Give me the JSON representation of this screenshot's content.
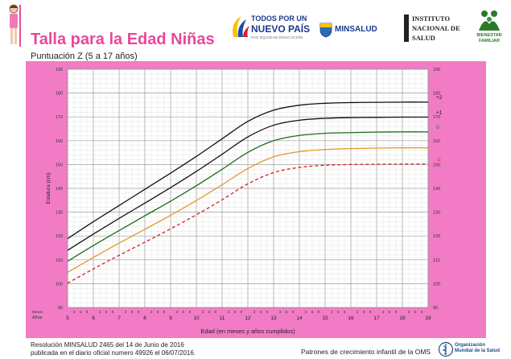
{
  "header": {
    "title": "Talla para la Edad Niñas",
    "subtitle": "Puntuación Z (5 a 17 años)"
  },
  "logos": {
    "todos_line1": "TODOS POR UN",
    "todos_line2": "NUEVO PAÍS",
    "todos_line3": "PAZ  EQUIDAD  EDUCACIÓN",
    "minsalud": "MINSALUD",
    "ins_line1": "INSTITUTO",
    "ins_line2": "NACIONAL DE",
    "ins_line3": "SALUD",
    "bienestar_line1": "BIENESTAR",
    "bienestar_line2": "FAMILIAR",
    "oms_line1": "Organización",
    "oms_line2": "Mundial de la Salud"
  },
  "footer": {
    "resolution_line1": "Resolución MINSALUD 2465 del 14 de Junio de 2016",
    "resolution_line2": "publicada en el diario oficial numero 49926 el 06/07/2016.",
    "source": "Patrones de crecimiento infantil de la OMS"
  },
  "chart_data": {
    "type": "line",
    "xlabel": "Edad (en meses y años cumplidos)",
    "ylabel": "Estatura (cm)",
    "xlim": [
      5,
      19
    ],
    "ylim": [
      90,
      190
    ],
    "y_ticks": [
      90,
      100,
      110,
      120,
      130,
      140,
      150,
      160,
      170,
      180,
      190
    ],
    "x_year_ticks": [
      5,
      6,
      7,
      8,
      9,
      10,
      11,
      12,
      13,
      14,
      15,
      16,
      17,
      18,
      19
    ],
    "month_labels": [
      "3",
      "6",
      "9"
    ],
    "meses_label": "Meses",
    "anos_label": "Años",
    "grid": true,
    "colors": {
      "background": "#f27bc5",
      "grid": "#b8b8b8"
    },
    "x": [
      5,
      6,
      7,
      8,
      9,
      10,
      11,
      12,
      13,
      14,
      15,
      16,
      17,
      18,
      19
    ],
    "series": [
      {
        "name": "+2",
        "color": "#111111",
        "dashed": false,
        "values": [
          118.9,
          126.0,
          132.8,
          139.6,
          146.4,
          153.4,
          160.8,
          168.1,
          172.8,
          174.9,
          175.7,
          176.0,
          176.1,
          176.2,
          176.2
        ]
      },
      {
        "name": "+1",
        "color": "#111111",
        "dashed": false,
        "values": [
          114.0,
          120.8,
          127.4,
          133.8,
          140.3,
          147.1,
          154.3,
          161.6,
          166.5,
          168.6,
          169.4,
          169.7,
          169.8,
          169.9,
          169.9
        ]
      },
      {
        "name": "0",
        "color": "#1a6e1a",
        "dashed": false,
        "values": [
          109.4,
          116.0,
          122.3,
          128.5,
          134.6,
          141.1,
          148.0,
          155.1,
          160.0,
          162.2,
          163.1,
          163.4,
          163.6,
          163.7,
          163.7
        ]
      },
      {
        "name": "-1",
        "color": "#e09a2a",
        "dashed": false,
        "values": [
          104.7,
          111.0,
          117.0,
          122.8,
          128.7,
          134.9,
          141.5,
          148.3,
          153.2,
          155.4,
          156.3,
          156.7,
          156.9,
          157.0,
          157.0
        ]
      },
      {
        "name": "-2",
        "color": "#d81e1e",
        "dashed": true,
        "values": [
          100.2,
          106.2,
          111.9,
          117.4,
          123.0,
          128.9,
          135.2,
          141.9,
          146.6,
          148.8,
          149.7,
          150.0,
          150.1,
          150.2,
          150.2
        ]
      }
    ]
  }
}
